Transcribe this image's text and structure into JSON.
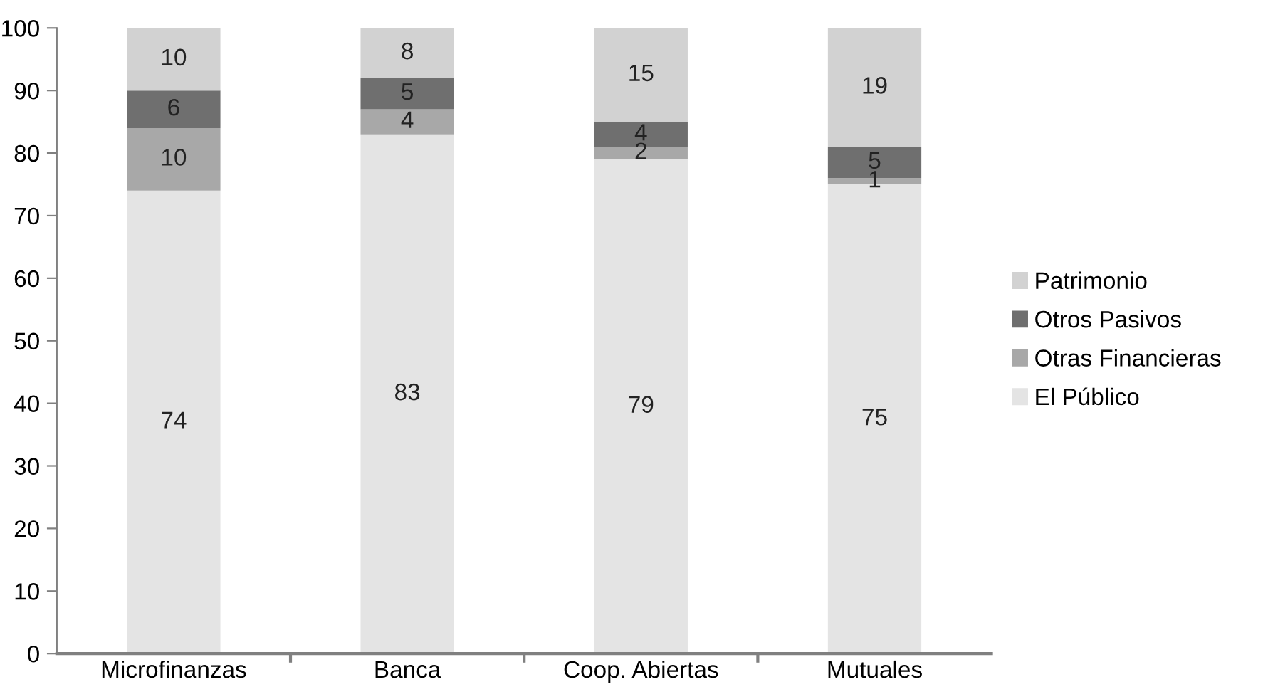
{
  "chart_data": {
    "type": "bar",
    "stacked": true,
    "categories": [
      "Microfinanzas",
      "Banca",
      "Coop. Abiertas",
      "Mutuales"
    ],
    "series": [
      {
        "name": "El Público",
        "color": "#e4e4e4",
        "values": [
          74,
          83,
          79,
          75
        ]
      },
      {
        "name": "Otras Financieras",
        "color": "#a8a8a8",
        "values": [
          10,
          4,
          2,
          1
        ]
      },
      {
        "name": "Otros Pasivos",
        "color": "#6f6f6f",
        "values": [
          6,
          5,
          4,
          5
        ]
      },
      {
        "name": "Patrimonio",
        "color": "#d2d2d2",
        "values": [
          10,
          8,
          15,
          19
        ]
      }
    ],
    "ylim": [
      0,
      100
    ],
    "yticks": [
      0,
      10,
      20,
      30,
      40,
      50,
      60,
      70,
      80,
      90,
      100
    ],
    "grid": false,
    "legend": "right",
    "data_labels": true
  }
}
